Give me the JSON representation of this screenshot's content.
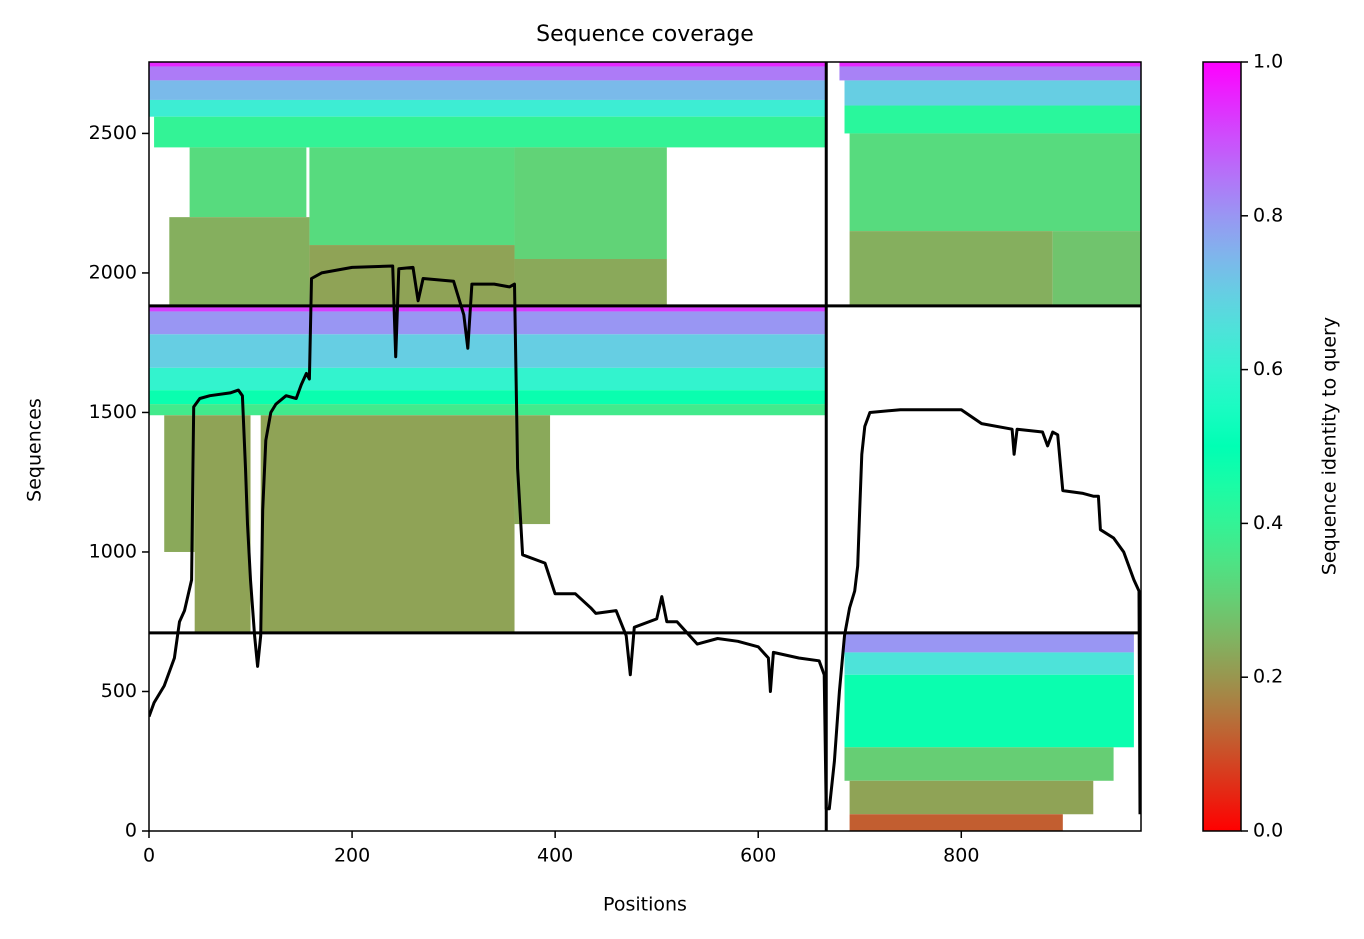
{
  "chart_data": {
    "type": "coverage",
    "title": "Sequence coverage",
    "xlabel": "Positions",
    "ylabel": "Sequences",
    "colorbar_label": "Sequence identity to query",
    "colormap": "rainbow_r",
    "line_color": "#000000",
    "xlim": [
      0,
      977
    ],
    "ylim": [
      0,
      2756
    ],
    "xticks": [
      0,
      200,
      400,
      600,
      800
    ],
    "yticks": [
      0,
      500,
      1000,
      1500,
      2000,
      2500
    ],
    "clim": [
      0,
      1
    ],
    "cticks": [
      {
        "value": 0,
        "label": "0.0"
      },
      0.2,
      0.4,
      0.6,
      0.8,
      {
        "value": 1,
        "label": "1.0"
      }
    ],
    "boundaries": {
      "x": [
        667
      ],
      "y": [
        710,
        1882
      ]
    },
    "blocks": [
      {
        "x": [
          0,
          667
        ],
        "y": [
          2740,
          2756
        ],
        "identity": 0.95
      },
      {
        "x": [
          0,
          667
        ],
        "y": [
          2690,
          2740
        ],
        "identity": 0.84
      },
      {
        "x": [
          0,
          667
        ],
        "y": [
          2620,
          2690
        ],
        "identity": 0.74
      },
      {
        "x": [
          0,
          667
        ],
        "y": [
          2560,
          2620
        ],
        "identity": 0.62
      },
      {
        "x": [
          5,
          667
        ],
        "y": [
          2450,
          2560
        ],
        "identity": 0.4
      },
      {
        "x": [
          40,
          155
        ],
        "y": [
          2200,
          2450
        ],
        "identity": 0.33
      },
      {
        "x": [
          158,
          360
        ],
        "y": [
          2100,
          2450
        ],
        "identity": 0.33
      },
      {
        "x": [
          360,
          510
        ],
        "y": [
          2050,
          2450
        ],
        "identity": 0.31
      },
      {
        "x": [
          20,
          158
        ],
        "y": [
          1882,
          2200
        ],
        "identity": 0.24
      },
      {
        "x": [
          158,
          360
        ],
        "y": [
          1882,
          2100
        ],
        "identity": 0.22
      },
      {
        "x": [
          360,
          510
        ],
        "y": [
          1882,
          2050
        ],
        "identity": 0.23
      },
      {
        "x": [
          0,
          667
        ],
        "y": [
          1862,
          1882
        ],
        "identity": 0.92
      },
      {
        "x": [
          0,
          667
        ],
        "y": [
          1780,
          1862
        ],
        "identity": 0.8
      },
      {
        "x": [
          0,
          667
        ],
        "y": [
          1660,
          1780
        ],
        "identity": 0.7
      },
      {
        "x": [
          0,
          667
        ],
        "y": [
          1580,
          1660
        ],
        "identity": 0.6
      },
      {
        "x": [
          0,
          667
        ],
        "y": [
          1530,
          1580
        ],
        "identity": 0.48
      },
      {
        "x": [
          0,
          667
        ],
        "y": [
          1490,
          1530
        ],
        "identity": 0.37
      },
      {
        "x": [
          15,
          45
        ],
        "y": [
          1000,
          1490
        ],
        "identity": 0.23
      },
      {
        "x": [
          45,
          100
        ],
        "y": [
          710,
          1490
        ],
        "identity": 0.22
      },
      {
        "x": [
          110,
          360
        ],
        "y": [
          710,
          1490
        ],
        "identity": 0.22
      },
      {
        "x": [
          360,
          395
        ],
        "y": [
          1100,
          1490
        ],
        "identity": 0.23
      },
      {
        "x": [
          680,
          977
        ],
        "y": [
          2740,
          2756
        ],
        "identity": 0.95
      },
      {
        "x": [
          680,
          977
        ],
        "y": [
          2690,
          2740
        ],
        "identity": 0.83
      },
      {
        "x": [
          685,
          977
        ],
        "y": [
          2600,
          2690
        ],
        "identity": 0.7
      },
      {
        "x": [
          685,
          977
        ],
        "y": [
          2500,
          2600
        ],
        "identity": 0.42
      },
      {
        "x": [
          690,
          977
        ],
        "y": [
          2150,
          2500
        ],
        "identity": 0.33
      },
      {
        "x": [
          690,
          890
        ],
        "y": [
          1882,
          2150
        ],
        "identity": 0.24
      },
      {
        "x": [
          890,
          977
        ],
        "y": [
          1882,
          2150
        ],
        "identity": 0.28
      },
      {
        "x": [
          685,
          970
        ],
        "y": [
          640,
          710
        ],
        "identity": 0.8
      },
      {
        "x": [
          685,
          970
        ],
        "y": [
          560,
          640
        ],
        "identity": 0.65
      },
      {
        "x": [
          685,
          970
        ],
        "y": [
          300,
          560
        ],
        "identity": 0.48
      },
      {
        "x": [
          685,
          950
        ],
        "y": [
          180,
          300
        ],
        "identity": 0.3
      },
      {
        "x": [
          690,
          930
        ],
        "y": [
          60,
          180
        ],
        "identity": 0.22
      },
      {
        "x": [
          690,
          900
        ],
        "y": [
          0,
          60
        ],
        "identity": 0.12
      }
    ],
    "coverage": {
      "x": [
        0,
        5,
        15,
        25,
        30,
        35,
        42,
        44,
        50,
        60,
        80,
        88,
        92,
        95,
        97,
        100,
        104,
        107,
        110,
        112,
        115,
        120,
        125,
        135,
        145,
        150,
        155,
        158,
        160,
        170,
        200,
        240,
        243,
        246,
        260,
        265,
        270,
        300,
        310,
        314,
        318,
        340,
        355,
        360,
        363,
        368,
        390,
        400,
        420,
        435,
        440,
        460,
        470,
        474,
        478,
        500,
        505,
        510,
        520,
        530,
        540,
        560,
        580,
        600,
        610,
        612,
        615,
        640,
        660,
        665,
        667,
        670,
        675,
        680,
        685,
        690,
        695,
        698,
        700,
        702,
        705,
        710,
        740,
        800,
        820,
        850,
        852,
        855,
        880,
        885,
        890,
        895,
        900,
        920,
        930,
        935,
        937,
        950,
        960,
        970,
        975,
        976
      ],
      "y": [
        410,
        460,
        520,
        620,
        750,
        790,
        900,
        1520,
        1550,
        1560,
        1570,
        1580,
        1560,
        1300,
        1100,
        900,
        700,
        590,
        700,
        1150,
        1400,
        1500,
        1530,
        1560,
        1550,
        1600,
        1640,
        1620,
        1980,
        2000,
        2020,
        2025,
        1700,
        2015,
        2020,
        1900,
        1980,
        1970,
        1850,
        1730,
        1960,
        1960,
        1950,
        1960,
        1300,
        990,
        960,
        850,
        850,
        800,
        780,
        790,
        700,
        560,
        730,
        760,
        840,
        750,
        750,
        710,
        670,
        690,
        680,
        660,
        620,
        500,
        640,
        620,
        610,
        560,
        80,
        80,
        250,
        500,
        700,
        800,
        860,
        950,
        1150,
        1350,
        1450,
        1500,
        1510,
        1510,
        1460,
        1440,
        1350,
        1440,
        1430,
        1380,
        1430,
        1420,
        1220,
        1210,
        1200,
        1200,
        1080,
        1050,
        1000,
        900,
        860,
        60
      ]
    }
  }
}
